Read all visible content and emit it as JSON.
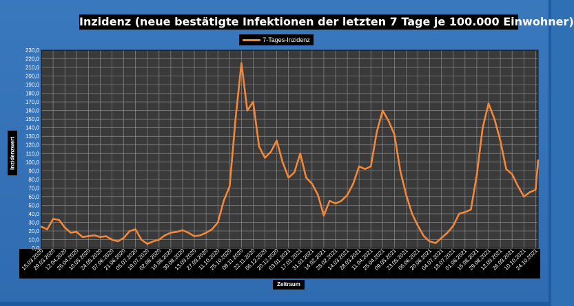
{
  "title": "Inzidenz (neue bestätigte Infektionen der letzten 7 Tage je 100.000 Einwohner)",
  "chart_data": {
    "type": "line",
    "title": "Inzidenz (neue bestätigte Infektionen der letzten 7 Tage je 100.000 Einwohner)",
    "xlabel": "Zeitraum",
    "ylabel": "Inzidenzwert",
    "ylim": [
      0,
      230
    ],
    "grid": true,
    "legend_position": "top-center",
    "colors": {
      "line": "#f4883a",
      "plot_bg": "#3a3a3a",
      "grid": "#8a8a8a",
      "frame": "#2f6fb3"
    },
    "y_ticks": [
      "0,0",
      "10,0",
      "20,0",
      "30,0",
      "40,0",
      "50,0",
      "60,0",
      "70,0",
      "80,0",
      "90,0",
      "100,0",
      "110,0",
      "120,0",
      "130,0",
      "140,0",
      "150,0",
      "160,0",
      "170,0",
      "180,0",
      "190,0",
      "200,0",
      "210,0",
      "220,0",
      "230,0"
    ],
    "x_ticks": [
      "15.03.2020",
      "29.03.2020",
      "12.04.2020",
      "26.04.2020",
      "10.05.2020",
      "24.05.2020",
      "07.06.2020",
      "21.06.2020",
      "05.07.2020",
      "19.07.2020",
      "02.08.2020",
      "16.08.2020",
      "30.08.2020",
      "13.09.2020",
      "27.09.2020",
      "11.10.2020",
      "25.10.2020",
      "08.11.2020",
      "22.11.2020",
      "06.12.2020",
      "20.12.2020",
      "03.01.2021",
      "17.01.2021",
      "31.01.2021",
      "14.02.2021",
      "28.02.2021",
      "14.03.2021",
      "28.03.2021",
      "11.04.2021",
      "25.04.2021",
      "09.05.2021",
      "23.05.2021",
      "06.06.2021",
      "20.06.2021",
      "04.07.2021",
      "18.07.2021",
      "01.08.2021",
      "15.08.2021",
      "29.08.2021",
      "12.09.2021",
      "26.09.2021",
      "10.10.2021",
      "24.10.2021"
    ],
    "series": [
      {
        "name": "7-Tages-Inzidenz",
        "x": [
          "15.03.2020",
          "22.03.2020",
          "29.03.2020",
          "05.04.2020",
          "12.04.2020",
          "19.04.2020",
          "26.04.2020",
          "03.05.2020",
          "10.05.2020",
          "17.05.2020",
          "24.05.2020",
          "31.05.2020",
          "07.06.2020",
          "14.06.2020",
          "21.06.2020",
          "28.06.2020",
          "05.07.2020",
          "12.07.2020",
          "19.07.2020",
          "26.07.2020",
          "02.08.2020",
          "09.08.2020",
          "16.08.2020",
          "23.08.2020",
          "30.08.2020",
          "06.09.2020",
          "13.09.2020",
          "20.09.2020",
          "27.09.2020",
          "04.10.2020",
          "11.10.2020",
          "18.10.2020",
          "25.10.2020",
          "01.11.2020",
          "08.11.2020",
          "15.11.2020",
          "22.11.2020",
          "29.11.2020",
          "06.12.2020",
          "13.12.2020",
          "20.12.2020",
          "27.12.2020",
          "03.01.2021",
          "10.01.2021",
          "17.01.2021",
          "24.01.2021",
          "31.01.2021",
          "07.02.2021",
          "14.02.2021",
          "21.02.2021",
          "28.02.2021",
          "07.03.2021",
          "14.03.2021",
          "21.03.2021",
          "28.03.2021",
          "04.04.2021",
          "11.04.2021",
          "18.04.2021",
          "25.04.2021",
          "02.05.2021",
          "09.05.2021",
          "16.05.2021",
          "23.05.2021",
          "30.05.2021",
          "06.06.2021",
          "13.06.2021",
          "20.06.2021",
          "27.06.2021",
          "04.07.2021",
          "11.07.2021",
          "18.07.2021",
          "25.07.2021",
          "01.08.2021",
          "08.08.2021",
          "15.08.2021",
          "22.08.2021",
          "29.08.2021",
          "05.09.2021",
          "12.09.2021",
          "19.09.2021",
          "26.09.2021",
          "03.10.2021",
          "10.10.2021",
          "17.10.2021",
          "24.10.2021",
          "27.10.2021"
        ],
        "values": [
          25,
          22,
          34,
          33,
          24,
          18,
          19,
          13,
          14,
          15,
          13,
          14,
          10,
          8,
          12,
          20,
          22,
          10,
          5,
          8,
          10,
          15,
          18,
          19,
          21,
          18,
          14,
          15,
          18,
          22,
          30,
          55,
          72,
          150,
          215,
          160,
          170,
          118,
          105,
          112,
          125,
          100,
          82,
          88,
          110,
          82,
          75,
          62,
          38,
          55,
          52,
          55,
          62,
          75,
          95,
          92,
          95,
          135,
          160,
          148,
          132,
          90,
          62,
          40,
          26,
          14,
          8,
          6,
          12,
          18,
          26,
          40,
          42,
          45,
          85,
          140,
          168,
          150,
          125,
          92,
          86,
          72,
          60,
          65,
          68,
          102
        ]
      }
    ]
  }
}
